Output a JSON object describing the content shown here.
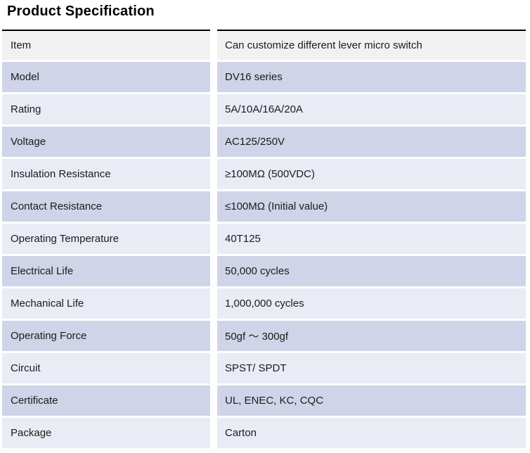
{
  "page": {
    "title": "Product Specification"
  },
  "table": {
    "colors": {
      "header_row_bg": "#f1f1f1",
      "dark_row_bg": "#cfd4e8",
      "light_row_bg": "#e9ebf5",
      "top_rule": "#000000",
      "text": "#1c1c1c"
    },
    "rows": [
      {
        "label": "Item",
        "value": "Can customize different lever micro switch"
      },
      {
        "label": "Model",
        "value": "DV16 series"
      },
      {
        "label": "Rating",
        "value": "5A/10A/16A/20A"
      },
      {
        "label": "Voltage",
        "value": "AC125/250V"
      },
      {
        "label": "Insulation Resistance",
        "value": "≥100MΩ (500VDC)"
      },
      {
        "label": "Contact Resistance",
        "value": "≤100MΩ (Initial value)"
      },
      {
        "label": "Operating Temperature",
        "value": "40T125"
      },
      {
        "label": "Electrical Life",
        "value": "50,000 cycles"
      },
      {
        "label": "Mechanical Life",
        "value": "1,000,000 cycles"
      },
      {
        "label": "Operating Force",
        "value": "50gf ～ 300gf"
      },
      {
        "label": "Circuit",
        "value": "SPST/ SPDT"
      },
      {
        "label": "Certificate",
        "value": "UL, ENEC, KC, CQC"
      },
      {
        "label": "Package",
        "value": "Carton"
      }
    ]
  }
}
